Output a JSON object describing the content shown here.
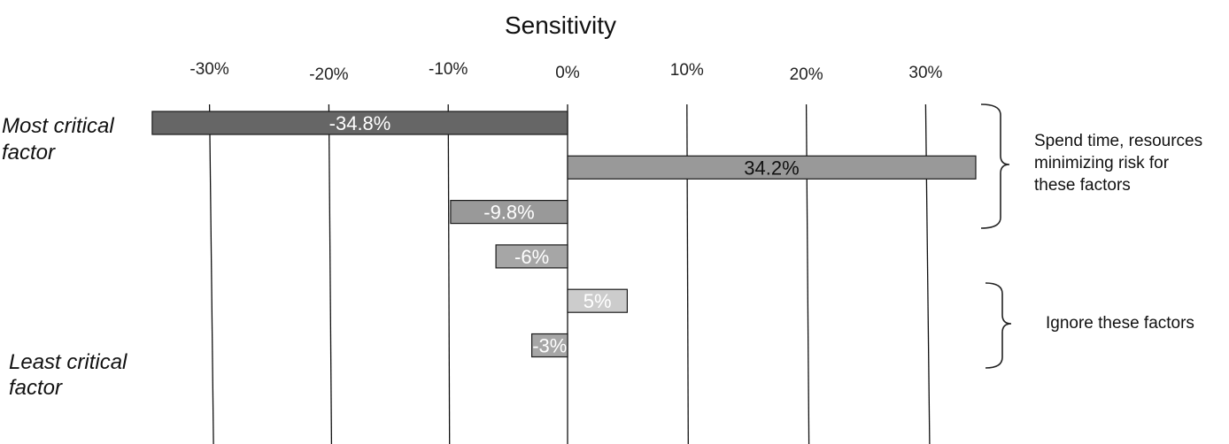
{
  "chart_data": {
    "type": "bar",
    "orientation": "horizontal",
    "title": "Sensitivity",
    "x_ticks": [
      {
        "value": -30,
        "label": "-30%"
      },
      {
        "value": -20,
        "label": "-20%"
      },
      {
        "value": -10,
        "label": "-10%"
      },
      {
        "value": 0,
        "label": "0%"
      },
      {
        "value": 10,
        "label": "10%"
      },
      {
        "value": 20,
        "label": "20%"
      },
      {
        "value": 30,
        "label": "30%"
      }
    ],
    "xlim": [
      -34.8,
      34.2
    ],
    "grid": true,
    "bars": [
      {
        "value": -34.8,
        "label": "-34.8%",
        "color": "#666666",
        "label_color": "#ffffff"
      },
      {
        "value": 34.2,
        "label": "34.2%",
        "color": "#999999",
        "label_color": "#111111"
      },
      {
        "value": -9.8,
        "label": "-9.8%",
        "color": "#999999",
        "label_color": "#ffffff"
      },
      {
        "value": -6,
        "label": "-6%",
        "color": "#a6a6a6",
        "label_color": "#ffffff"
      },
      {
        "value": 5,
        "label": "5%",
        "color": "#cccccc",
        "label_color": "#ffffff"
      },
      {
        "value": -3,
        "label": "-3%",
        "color": "#a6a6a6",
        "label_color": "#ffffff"
      }
    ],
    "row_labels": {
      "top": [
        "Most critical",
        "factor"
      ],
      "bottom": [
        "Least critical",
        "factor"
      ]
    },
    "annotations": [
      {
        "lines": [
          "Spend time, resources",
          "minimizing risk for",
          "these factors"
        ]
      },
      {
        "lines": [
          "Ignore these factors"
        ]
      }
    ]
  }
}
